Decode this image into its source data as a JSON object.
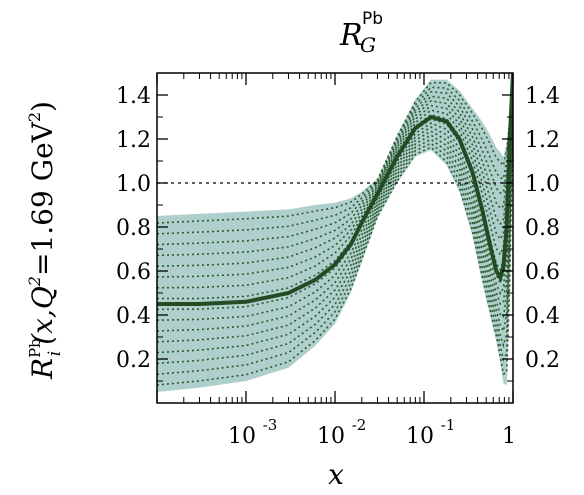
{
  "title": {
    "main": "R",
    "sub": "G",
    "sup": "Pb"
  },
  "chart_data": {
    "type": "line",
    "xlabel": "x",
    "ylabel": {
      "lead": "R",
      "sup_pb": "Pb",
      "sub_i": "i",
      "args": "(x,Q",
      "sq": "2",
      "eq": "=1.69 GeV",
      "sq2": "2",
      "close": ")"
    },
    "xscale": "log",
    "xlim": [
      0.0001,
      1
    ],
    "ylim": [
      0,
      1.5
    ],
    "grid": false,
    "x_tick_labels": [
      {
        "x": 0.001,
        "base": "10",
        "exp": "-3"
      },
      {
        "x": 0.01,
        "base": "10",
        "exp": "-2"
      },
      {
        "x": 0.1,
        "base": "10",
        "exp": "-1"
      },
      {
        "x": 1,
        "base": "1",
        "exp": ""
      }
    ],
    "y_tick_labels_left": [
      "0.2",
      "0.4",
      "0.6",
      "0.8",
      "1.0",
      "1.2",
      "1.4"
    ],
    "y_tick_labels_right": [
      "0.2",
      "0.4",
      "0.6",
      "0.8",
      "1.0",
      "1.2",
      "1.4"
    ],
    "y_ticks": [
      0.2,
      0.4,
      0.6,
      0.8,
      1.0,
      1.2,
      1.4
    ],
    "reference_line": {
      "y": 1.0,
      "style": "dashed"
    },
    "central_fit": {
      "x": [
        0.0001,
        0.0003,
        0.001,
        0.003,
        0.006,
        0.01,
        0.015,
        0.02,
        0.03,
        0.05,
        0.08,
        0.12,
        0.18,
        0.25,
        0.35,
        0.45,
        0.55,
        0.65,
        0.72,
        0.78,
        0.85,
        0.92,
        1.0
      ],
      "y": [
        0.45,
        0.45,
        0.46,
        0.5,
        0.56,
        0.63,
        0.72,
        0.82,
        0.95,
        1.12,
        1.25,
        1.3,
        1.28,
        1.2,
        1.05,
        0.88,
        0.72,
        0.6,
        0.57,
        0.62,
        0.8,
        1.2,
        1.5
      ]
    },
    "uncertainty_band": {
      "x": [
        0.0001,
        0.0003,
        0.001,
        0.003,
        0.006,
        0.01,
        0.015,
        0.02,
        0.03,
        0.05,
        0.08,
        0.12,
        0.18,
        0.25,
        0.35,
        0.45,
        0.55,
        0.65,
        0.72,
        0.78,
        0.85,
        0.92,
        1.0
      ],
      "upper": [
        0.85,
        0.86,
        0.87,
        0.88,
        0.9,
        0.91,
        0.93,
        0.96,
        1.02,
        1.22,
        1.38,
        1.47,
        1.47,
        1.42,
        1.34,
        1.28,
        1.22,
        1.16,
        1.14,
        1.12,
        1.18,
        1.3,
        1.5
      ],
      "lower": [
        0.05,
        0.07,
        0.1,
        0.16,
        0.26,
        0.36,
        0.5,
        0.64,
        0.84,
        1.0,
        1.12,
        1.15,
        1.08,
        0.96,
        0.76,
        0.55,
        0.4,
        0.28,
        0.18,
        0.09,
        0.08,
        0.5,
        1.3
      ]
    },
    "error_set_count": 16,
    "colors": {
      "band": "#aecfcc",
      "fit": "#244a26",
      "error_sets": "#2e5a2e",
      "reference": "#000000"
    }
  }
}
